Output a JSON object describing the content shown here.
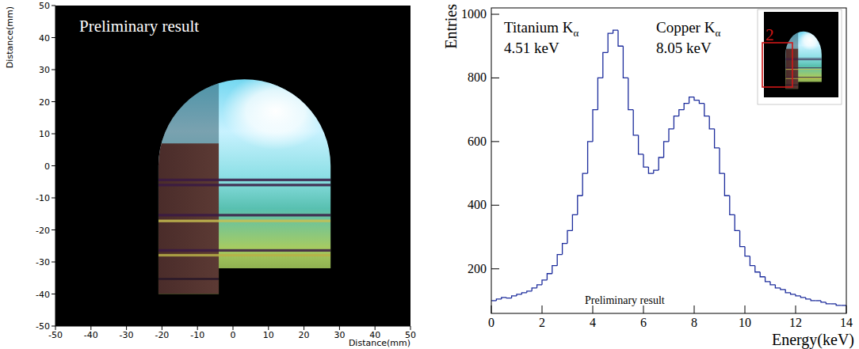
{
  "chart_data": [
    {
      "type": "image",
      "annotations": [
        "Preliminary result"
      ],
      "x_label": "Distance(mm)",
      "y_label": "Distance(mm)",
      "xlim": [
        -50,
        50
      ],
      "ylim": [
        -50,
        50
      ],
      "xticks": [
        -50,
        -40,
        -30,
        -20,
        -10,
        0,
        10,
        20,
        30,
        40,
        50
      ],
      "yticks": [
        -50,
        -40,
        -30,
        -20,
        -10,
        0,
        10,
        20,
        30,
        40,
        50
      ]
    },
    {
      "type": "histogram",
      "x_label": "Energy(keV)",
      "y_label": "Entries",
      "annotations": [
        "Titanium Kα",
        "4.51 keV",
        "Copper Kα",
        "8.05 keV",
        "Preliminary result",
        "2"
      ],
      "color": "#1c2c9c",
      "xlim": [
        0,
        14
      ],
      "ylim": [
        60,
        1020
      ],
      "xticks": [
        0,
        2,
        4,
        6,
        8,
        10,
        12,
        14
      ],
      "yticks": [
        200,
        400,
        600,
        800,
        1000
      ],
      "bins": [
        0,
        0.2,
        0.4,
        0.6,
        0.8,
        1,
        1.2,
        1.4,
        1.6,
        1.8,
        2,
        2.2,
        2.4,
        2.6,
        2.8,
        3,
        3.2,
        3.4,
        3.6,
        3.8,
        4,
        4.2,
        4.4,
        4.6,
        4.8,
        5,
        5.2,
        5.4,
        5.6,
        5.8,
        6,
        6.2,
        6.4,
        6.6,
        6.8,
        7,
        7.2,
        7.4,
        7.6,
        7.8,
        8,
        8.2,
        8.4,
        8.6,
        8.8,
        9,
        9.2,
        9.4,
        9.6,
        9.8,
        10,
        10.2,
        10.4,
        10.6,
        10.8,
        11,
        11.2,
        11.4,
        11.6,
        11.8,
        12,
        12.2,
        12.4,
        12.6,
        12.8,
        13,
        13.2,
        13.4,
        13.6,
        13.8,
        14
      ],
      "values": [
        100,
        105,
        110,
        108,
        115,
        120,
        125,
        130,
        140,
        150,
        165,
        185,
        210,
        245,
        280,
        320,
        370,
        430,
        500,
        600,
        700,
        800,
        880,
        940,
        950,
        900,
        800,
        700,
        620,
        560,
        520,
        500,
        510,
        550,
        600,
        640,
        680,
        700,
        720,
        740,
        730,
        720,
        680,
        640,
        580,
        500,
        430,
        370,
        320,
        270,
        240,
        210,
        190,
        175,
        160,
        150,
        140,
        135,
        125,
        120,
        115,
        110,
        105,
        100,
        100,
        95,
        90,
        90,
        85,
        85
      ]
    }
  ]
}
